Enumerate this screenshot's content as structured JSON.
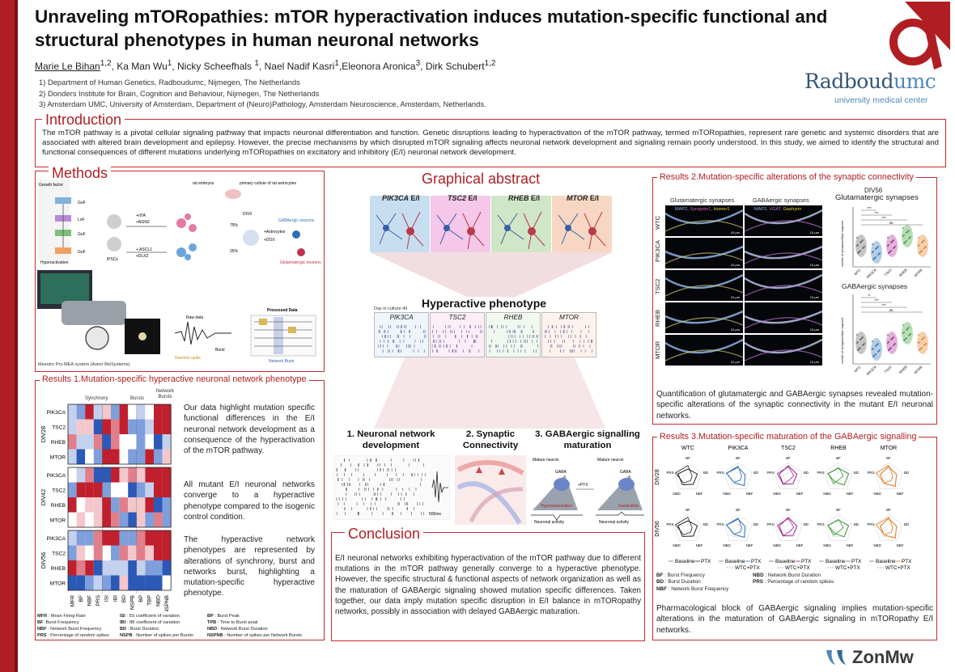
{
  "title": "Unraveling mTORopathies: mTOR hyperactivation induces mutation-specific functional and structural phenotypes in human neuronal networks",
  "authors": {
    "a1": "Marie Le Bihan",
    "a1_sup": "1,2",
    "a2": ", Ka Man Wu",
    "a2_sup": "1",
    "a3": ", Nicky Scheefhals ",
    "a3_sup": "1",
    "a4": ", Nael Nadif Kasri",
    "a4_sup": "1",
    "a5": ",Eleonora Aronica",
    "a5_sup": "3",
    "a6": ", Dirk Schubert",
    "a6_sup": "1,2"
  },
  "affiliations": [
    "1) Department of Human Genetics, Radboudumc, Nijmegen, The Netherlands",
    "2) Donders Institute for Brain, Cognition and Behaviour, Nijmegen, The Netherlands",
    "3) Amsterdam UMC, University of Amsterdam, Department of (Neuro)Pathology, Amsterdam Neuroscience, Amsterdam, Netherlands."
  ],
  "logo": {
    "name1": "Radboud",
    "name2": "umc",
    "sub": "university medical center",
    "funder": "ZonMw",
    "brand_color": "#b01e23",
    "logo_blue": "#33557a"
  },
  "introduction": {
    "heading": "Introduction",
    "text": "The mTOR pathway is a pivotal cellular signaling pathway that impacts neuronal differentiation and function. Genetic disruptions leading to hyperactivation of the mTOR pathway, termed mTORopathies, represent rare genetic and systemic disorders that are associated with altered brain development and epilepsy. However, the precise mechanisms by which disrupted mTOR signaling affects neuronal network development and signaling remain poorly understood. In this study, we aimed to identify the structural and functional consequences of different mutations underlying mTORopathies on excitatory and inhibitory (E/I) neuronal network development."
  },
  "methods": {
    "heading": "Methods",
    "labels": {
      "growth": "Growth factor",
      "gof1": "GoF",
      "lof": "LoF",
      "gof2": "GoF",
      "gof3": "GoF",
      "hyper": "Hyperactivation",
      "ipscs": "iPSCs",
      "rtta": "+rtTA",
      "ngn2": "+NGN2",
      "ascl1": "+ ASCL1",
      "dlx2": "+DLX2",
      "pct75": "75%",
      "pct25": "25%",
      "rat": "rat embryos",
      "astro": "primary culture of rat astrocytes",
      "div0": "DIV0",
      "astrocytes": "+Astrocytes",
      "dox": "+DOX",
      "gaba_neurons": "GABAergic neurons",
      "glut_neurons": "Glutamatergic neurons",
      "raw": "Raw data",
      "processed": "Processed Data",
      "random": "Random spike",
      "burst": "Burst",
      "net_burst": "Network Burst",
      "meestro": "Meestro Pro MEA system (Axion BioSystems)"
    }
  },
  "graphical_abstract": {
    "heading": "Graphical abstract",
    "panels": [
      {
        "gene": "PIK3CA",
        "suffix": " E/I",
        "color": "#c6def0"
      },
      {
        "gene": "TSC2",
        "suffix": " E/I",
        "color": "#f5c7e8"
      },
      {
        "gene": "RHEB",
        "suffix": " E/I",
        "color": "#cfe6c7"
      },
      {
        "gene": "MTOR",
        "suffix": " E/I",
        "color": "#f7d7c3"
      }
    ],
    "hyper_heading": "Hyperactive phenotype",
    "day_label": "Day in culture 49",
    "mini": [
      "PIK3CA",
      "TSC2",
      "RHEB",
      "MTOR"
    ],
    "pillars": [
      {
        "num": "1. ",
        "text": "Neuronal network development"
      },
      {
        "num": "2. ",
        "text": "Synaptic Connectivity"
      },
      {
        "num": "3. ",
        "text": "GABAergic signalling maturation"
      }
    ],
    "pillar3": {
      "mature": "Mature neuron",
      "mature2": "Mature neuron",
      "gaba": "GABA",
      "gaba2": "GABA",
      "ptx": "+PTX",
      "hyperpol": "Hyperpolarization",
      "inact": "Inactivation",
      "activity": "Neuronal activity",
      "activity2": "Neuronal activity"
    },
    "trace_scale": "500ms"
  },
  "conclusion": {
    "heading": "Conclusion",
    "text": "E/I neuronal networks exhibiting hyperactivation of the mTOR pathway due to different mutations in the mTOR pathway generally converge to a hyperactive phenotype. However, the specific structural & functional aspects of network organization as well as the maturation of GABAergic signaling showed mutation specific differences. Taken together, our data imply mutation specific disruption in E/I balance in mTORopathy networks, possibly in association with delayed GABAergic maturation."
  },
  "results1": {
    "heading": "Results 1.Mutation-specific hyperactive neuronal network phenotype",
    "groups": [
      "Synchrony",
      "Bursts",
      "Network Bursts"
    ],
    "blocks": [
      "DIV28",
      "DIV42",
      "DIV56"
    ],
    "rows": [
      "PIK3CA",
      "TSC2",
      "RHEB",
      "MTOR"
    ],
    "columns": [
      "MFR",
      "BF",
      "NBF",
      "PRS",
      "ISI",
      "IBI",
      "BD",
      "NSPB",
      "BP",
      "TBP",
      "NBD",
      "NSPNB"
    ],
    "para1": "Our data highlight mutation specific functional differences in the E/I neuronal network development as a consequence of the hyperactivation of the mTOR pathway.",
    "para2": "All mutant E/I neuronal networks converge to a hyperactive phenotype compared to the isogenic control condition.",
    "para3": "The hyperactive network phenotypes are represented by alterations of synchrony, burst and networks burst, highlighting a mutation-specific hyperactive phenotype.",
    "abbr_col1": [
      {
        "k": "MFR",
        "v": " : Mean Firing Rate"
      },
      {
        "k": "BF",
        "v": " :Burst Frequency"
      },
      {
        "k": "NBF",
        "v": " : Network Burst Frequency"
      },
      {
        "k": "PRS",
        "v": " : Percentage of random spikes"
      }
    ],
    "abbr_col2": [
      {
        "k": "ISI",
        "v": " : ISI coefficient of variation"
      },
      {
        "k": "IBI",
        "v": " : IBI coefficient of variation"
      },
      {
        "k": "BD",
        "v": " : Burst Duration"
      },
      {
        "k": "NSPB",
        "v": " : Number of spikes per Bursts"
      }
    ],
    "abbr_col3": [
      {
        "k": "BP",
        "v": " : Burst Peak"
      },
      {
        "k": "TPB",
        "v": " : Time to Burst peak"
      },
      {
        "k": "NBD",
        "v": " : Network Burst Duration"
      },
      {
        "k": "NSPNB",
        "v": " : Number of spikes per Network Bursts"
      }
    ]
  },
  "results2": {
    "heading": "Results 2.Mutation-specific alterations of the synaptic connectivity",
    "col1": "Glutamatergic synapses",
    "col2": "GABAergic synapses",
    "stain1": [
      "MAP2, ",
      "Synapsin1, ",
      "Homer1"
    ],
    "stain2": [
      "MAP2, ",
      "VGAT, ",
      "Gephyrin"
    ],
    "rows": [
      "WTC",
      "PIK3CA",
      "TSC2",
      "RHEB",
      "MTOR"
    ],
    "scale": "10 µm",
    "div": "DIV56",
    "plot1_title": "Glutamatergic synapses",
    "plot2_title": "GABAergic synapses",
    "ylabel": "number of synapses/40µm segment",
    "xcats": [
      "WTC",
      "PIK3CA",
      "TSC2",
      "RHEB",
      "MTOR"
    ],
    "sig1": [
      "***",
      "***",
      "***",
      "ns"
    ],
    "sig2": [
      "**",
      "***",
      "***",
      "ns"
    ],
    "text": "Quantification of glutamatergic and GABAergic synapses revealed mutation-specific alterations of the synaptic connectivity in the mutant E/I neuronal networks."
  },
  "results3": {
    "heading": "Results 3.Mutation-specific maturation of the GABAergic signalling",
    "columns": [
      "WTC",
      "PIK3CA",
      "TSC2",
      "RHEB",
      "MTOR"
    ],
    "rows": [
      "DIV28",
      "DIV56"
    ],
    "axes": [
      "BF",
      "BD",
      "NBF",
      "NBD",
      "PRS"
    ],
    "legend_baseline": "Baseline",
    "legend_ptx": "PTX",
    "legend_wtc_ptx": "WTC+PTX",
    "abbr_left": [
      {
        "k": "BF",
        "v": " : Burst Frequency"
      },
      {
        "k": "BD",
        "v": " : Burst Duration"
      },
      {
        "k": "NBF",
        "v": " : Network Burst Frequency"
      }
    ],
    "abbr_right": [
      {
        "k": "NBD",
        "v": " : Network Burst Duration"
      },
      {
        "k": "PRS",
        "v": " : Percentage of random spikes"
      }
    ],
    "series_colors": [
      "#222222",
      "#2a6fb5",
      "#a3218e",
      "#3a9a3a",
      "#e07a1a"
    ],
    "text": "Pharmacological block of GABAergic signaling implies mutation-specific alterations in the maturation of GABAergic signaling in mTORopathy E/I networks."
  }
}
